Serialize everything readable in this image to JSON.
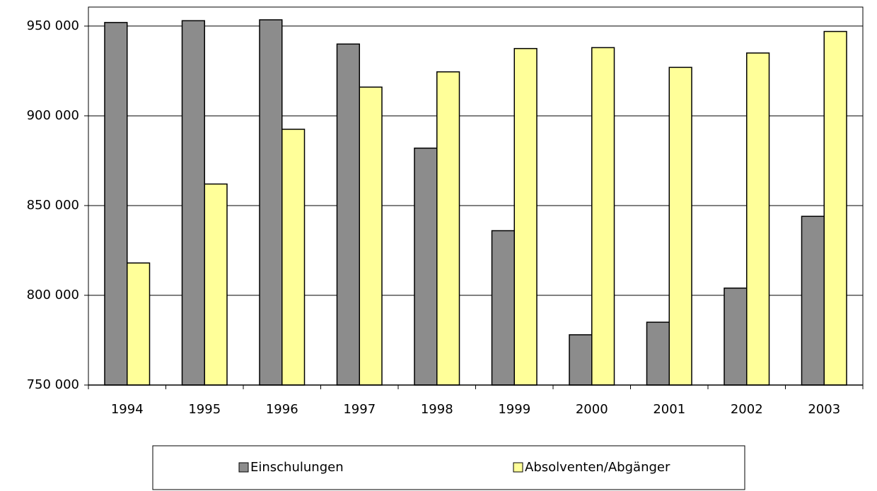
{
  "chart_data": {
    "type": "bar",
    "categories": [
      "1994",
      "1995",
      "1996",
      "1997",
      "1998",
      "1999",
      "2000",
      "2001",
      "2002",
      "2003"
    ],
    "series": [
      {
        "name": "Einschulungen",
        "color": "#8c8c8c",
        "values": [
          952000,
          953000,
          953500,
          940000,
          882000,
          836000,
          778000,
          785000,
          804000,
          844000
        ]
      },
      {
        "name": "Absolventen/Abgänger",
        "color": "#ffff99",
        "values": [
          818000,
          862000,
          892500,
          916000,
          924500,
          937500,
          938000,
          927000,
          935000,
          947000
        ]
      }
    ],
    "ylim": [
      750000,
      960600
    ],
    "yticks": [
      {
        "value": 750000,
        "label": "750 000"
      },
      {
        "value": 800000,
        "label": "800 000"
      },
      {
        "value": 850000,
        "label": "850 000"
      },
      {
        "value": 900000,
        "label": "900 000"
      },
      {
        "value": 950000,
        "label": "950 000"
      }
    ],
    "grid": true,
    "legend": "bottom"
  }
}
